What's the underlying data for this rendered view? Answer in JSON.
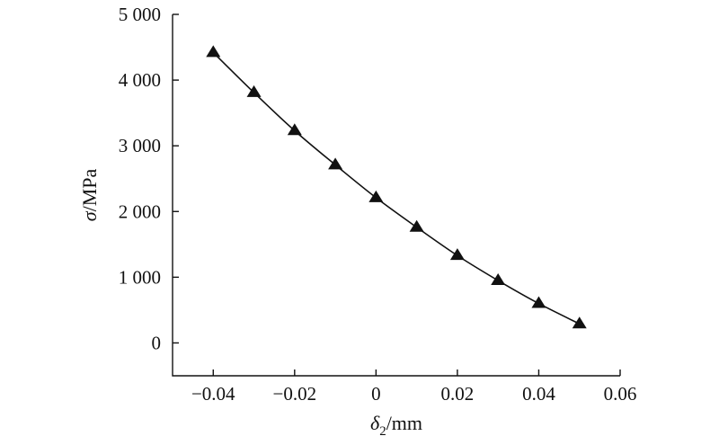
{
  "chart_data": {
    "type": "line",
    "title": "",
    "xlabel": {
      "symbol": "δ",
      "subscript": "2",
      "unit": "/mm"
    },
    "ylabel": {
      "symbol": "σ",
      "unit": "/MPa"
    },
    "xlim": [
      -0.05,
      0.06
    ],
    "ylim": [
      -500,
      5000
    ],
    "x_ticks": [
      -0.04,
      -0.02,
      0,
      0.02,
      0.04,
      0.06
    ],
    "x_tick_labels": [
      "−0.04",
      "−0.02",
      "0",
      "0.02",
      "0.04",
      "0.06"
    ],
    "y_ticks": [
      0,
      1000,
      2000,
      3000,
      4000,
      5000
    ],
    "y_tick_labels": [
      "0",
      "1 000",
      "2 000",
      "3 000",
      "4 000",
      "5 000"
    ],
    "grid": false,
    "marker": "triangle",
    "color": "#111111",
    "series": [
      {
        "x": [
          -0.04,
          -0.03,
          -0.02,
          -0.01,
          0,
          0.01,
          0.02,
          0.03,
          0.04,
          0.05
        ],
        "y": [
          4420,
          3810,
          3230,
          2710,
          2210,
          1760,
          1330,
          950,
          600,
          290
        ]
      }
    ]
  }
}
